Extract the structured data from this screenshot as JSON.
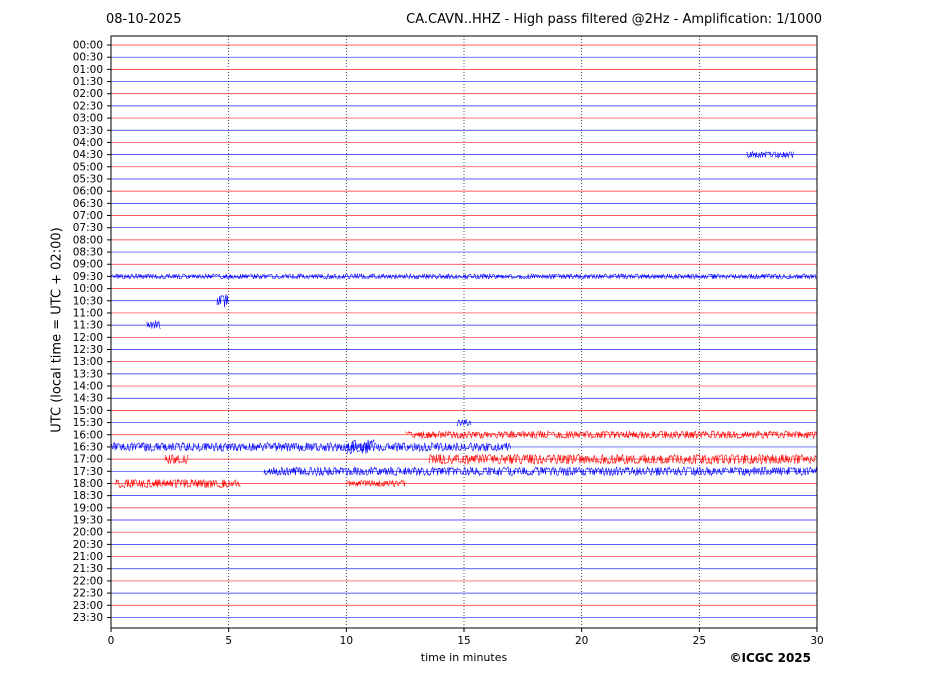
{
  "header": {
    "date": "08-10-2025",
    "title": "CA.CAVN..HHZ - High pass filtered @2Hz - Amplification: 1/1000"
  },
  "footer": {
    "copyright": "©ICGC 2025"
  },
  "chart_data": {
    "type": "line",
    "title": "CA.CAVN..HHZ - High pass filtered @2Hz - Amplification: 1/1000",
    "xlabel": "time in minutes",
    "ylabel": "UTC (local time = UTC + 02:00)",
    "xlim": [
      0,
      30
    ],
    "xticks": [
      0,
      5,
      10,
      15,
      20,
      25,
      30
    ],
    "grid": "vertical dotted at 5-minute intervals",
    "rows": [
      "00:00",
      "00:30",
      "01:00",
      "01:30",
      "02:00",
      "02:30",
      "03:00",
      "03:30",
      "04:00",
      "04:30",
      "05:00",
      "05:30",
      "06:00",
      "06:30",
      "07:00",
      "07:30",
      "08:00",
      "08:30",
      "09:00",
      "09:30",
      "10:00",
      "10:30",
      "11:00",
      "11:30",
      "12:00",
      "12:30",
      "13:00",
      "13:30",
      "14:00",
      "14:30",
      "15:00",
      "15:30",
      "16:00",
      "16:30",
      "17:00",
      "17:30",
      "18:00",
      "18:30",
      "19:00",
      "19:30",
      "20:00",
      "20:30",
      "21:00",
      "21:30",
      "22:00",
      "22:30",
      "23:00",
      "23:30"
    ],
    "row_colors": [
      "#ff0000",
      "#0000ff"
    ],
    "events": [
      {
        "row": "10:30",
        "start_min": 4.5,
        "end_min": 5.0,
        "amp": 0.55,
        "color": "#0000ff"
      },
      {
        "row": "11:30",
        "start_min": 1.5,
        "end_min": 2.1,
        "amp": 0.35,
        "color": "#0000ff"
      },
      {
        "row": "15:30",
        "start_min": 14.7,
        "end_min": 15.3,
        "amp": 0.3,
        "color": "#0000ff"
      },
      {
        "row": "16:00",
        "start_min": 12.5,
        "end_min": 30.0,
        "amp": 0.3,
        "color": "#ff0000"
      },
      {
        "row": "16:30",
        "start_min": 0.0,
        "end_min": 17.0,
        "amp": 0.35,
        "color": "#0000ff"
      },
      {
        "row": "16:30",
        "start_min": 10.0,
        "end_min": 11.2,
        "amp": 0.6,
        "color": "#0000ff"
      },
      {
        "row": "17:00",
        "start_min": 2.3,
        "end_min": 3.3,
        "amp": 0.4,
        "color": "#ff0000"
      },
      {
        "row": "17:00",
        "start_min": 13.5,
        "end_min": 30.0,
        "amp": 0.4,
        "color": "#ff0000"
      },
      {
        "row": "17:30",
        "start_min": 6.5,
        "end_min": 30.0,
        "amp": 0.35,
        "color": "#0000ff"
      },
      {
        "row": "18:00",
        "start_min": 0.2,
        "end_min": 5.5,
        "amp": 0.35,
        "color": "#ff0000"
      },
      {
        "row": "18:00",
        "start_min": 10.0,
        "end_min": 12.5,
        "amp": 0.25,
        "color": "#ff0000"
      },
      {
        "row": "09:30",
        "start_min": 0.0,
        "end_min": 30.0,
        "amp": 0.2,
        "color": "#0000ff"
      },
      {
        "row": "04:30",
        "start_min": 27.0,
        "end_min": 29.0,
        "amp": 0.25,
        "color": "#0000ff"
      }
    ]
  }
}
